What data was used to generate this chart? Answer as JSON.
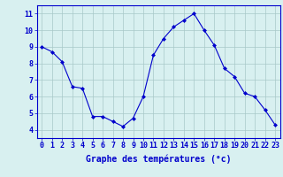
{
  "x": [
    0,
    1,
    2,
    3,
    4,
    5,
    6,
    7,
    8,
    9,
    10,
    11,
    12,
    13,
    14,
    15,
    16,
    17,
    18,
    19,
    20,
    21,
    22,
    23
  ],
  "y": [
    9.0,
    8.7,
    8.1,
    6.6,
    6.5,
    4.8,
    4.8,
    4.5,
    4.2,
    4.7,
    6.0,
    8.5,
    9.5,
    10.2,
    10.6,
    11.0,
    10.0,
    9.1,
    7.7,
    7.2,
    6.2,
    6.0,
    5.2,
    4.3
  ],
  "line_color": "#0000cc",
  "marker": "D",
  "marker_size": 2,
  "bg_color": "#d8f0f0",
  "grid_color": "#a8c8c8",
  "xlabel": "Graphe des températures (°c)",
  "xlabel_color": "#0000cc",
  "xlabel_fontsize": 7,
  "tick_color": "#0000cc",
  "tick_fontsize": 6,
  "ylim": [
    3.5,
    11.5
  ],
  "xlim": [
    -0.5,
    23.5
  ],
  "yticks": [
    4,
    5,
    6,
    7,
    8,
    9,
    10,
    11
  ],
  "xticks": [
    0,
    1,
    2,
    3,
    4,
    5,
    6,
    7,
    8,
    9,
    10,
    11,
    12,
    13,
    14,
    15,
    16,
    17,
    18,
    19,
    20,
    21,
    22,
    23
  ]
}
